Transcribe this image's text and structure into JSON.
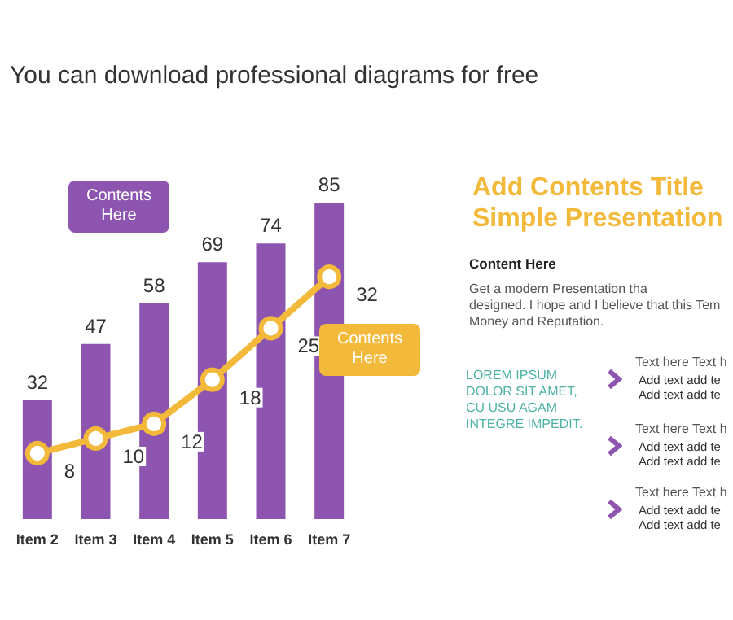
{
  "chart_data": {
    "type": "bar",
    "subtitle": "You can download professional diagrams for free",
    "categories": [
      "Item 2",
      "Item 3",
      "Item 4",
      "Item 5",
      "Item 6",
      "Item 7"
    ],
    "series": [
      {
        "color": "#8e55b0",
        "values": [
          32,
          47,
          58,
          69,
          74,
          85
        ]
      },
      {
        "type": "line",
        "axis": "y2",
        "color": "#f2b93b",
        "values": [
          8,
          10,
          12,
          18,
          25,
          32
        ]
      }
    ],
    "data_labels": true,
    "marker": "circle",
    "line_style": "solid",
    "annotations": [
      "Contents Here",
      "Contents Here",
      "Add Contents Title",
      "Simple Presentation",
      "Content Here",
      "Get a modern Presentation tha",
      "designed. I hope and I believe that this Tem",
      "Money and Reputation.",
      "LOREM IPSUM DOLOR SIT AMET, CU USU AGAM INTEGRE IMPEDIT.",
      "Text here Text h",
      "Add text add te",
      "Add text add te",
      "Text here Text h",
      "Add text add te",
      "Add text add te",
      "Text here Text h",
      "Add text add te",
      "Add text add te"
    ]
  }
}
